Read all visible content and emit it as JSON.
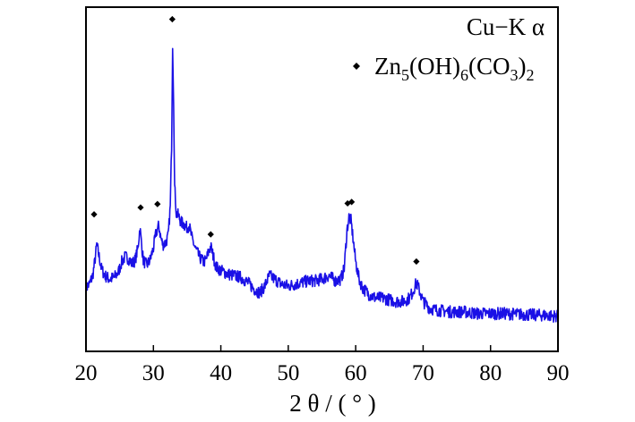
{
  "chart_data": {
    "type": "line",
    "xlabel": "2 θ / ( ° )",
    "ylabel": "",
    "xlim": [
      20,
      90
    ],
    "ylim": [
      0,
      100
    ],
    "x_ticks": [
      20,
      30,
      40,
      50,
      60,
      70,
      80,
      90
    ],
    "x_tick_labels": [
      "20",
      "30",
      "40",
      "50",
      "60",
      "70",
      "80",
      "90"
    ],
    "y_ticks_shown": false,
    "grid": false,
    "legend_position": "top-right",
    "colors": {
      "series": "#1a10e6",
      "marker": "#000000",
      "axes": "#000000"
    },
    "annotations": [
      {
        "text": "Cu−K α"
      },
      {
        "marker": "diamond",
        "formula": [
          {
            "t": "Zn"
          },
          {
            "t": "5",
            "sub": true
          },
          {
            "t": "(OH)"
          },
          {
            "t": "6",
            "sub": true
          },
          {
            "t": "(CO"
          },
          {
            "t": "3",
            "sub": true
          },
          {
            "t": ")"
          },
          {
            "t": "2",
            "sub": true
          }
        ]
      }
    ],
    "peak_markers": [
      {
        "x": 21.2,
        "y": 39.8
      },
      {
        "x": 28.1,
        "y": 41.8
      },
      {
        "x": 30.6,
        "y": 42.8
      },
      {
        "x": 32.8,
        "y": 96.5
      },
      {
        "x": 38.5,
        "y": 34.0
      },
      {
        "x": 58.8,
        "y": 43.0
      },
      {
        "x": 59.4,
        "y": 43.4
      },
      {
        "x": 69.0,
        "y": 26.1
      }
    ],
    "series": [
      {
        "name": "Zn5(OH)6(CO3)2",
        "color": "#1a10e6",
        "points": [
          [
            20.0,
            18.5
          ],
          [
            20.5,
            19.5
          ],
          [
            21.0,
            22.0
          ],
          [
            21.3,
            26.0
          ],
          [
            21.6,
            31.0
          ],
          [
            21.9,
            28.0
          ],
          [
            22.3,
            24.0
          ],
          [
            22.8,
            22.0
          ],
          [
            23.5,
            21.0
          ],
          [
            24.2,
            21.5
          ],
          [
            24.8,
            23.0
          ],
          [
            25.3,
            26.0
          ],
          [
            25.8,
            27.5
          ],
          [
            26.3,
            27.0
          ],
          [
            26.8,
            25.5
          ],
          [
            27.3,
            26.5
          ],
          [
            27.7,
            30.0
          ],
          [
            28.0,
            36.0
          ],
          [
            28.2,
            32.0
          ],
          [
            28.5,
            26.5
          ],
          [
            29.0,
            25.0
          ],
          [
            29.5,
            26.5
          ],
          [
            30.0,
            30.0
          ],
          [
            30.4,
            34.5
          ],
          [
            30.8,
            36.5
          ],
          [
            31.1,
            33.0
          ],
          [
            31.4,
            31.0
          ],
          [
            31.8,
            31.5
          ],
          [
            32.2,
            33.5
          ],
          [
            32.5,
            42.0
          ],
          [
            32.7,
            60.0
          ],
          [
            32.85,
            89.5
          ],
          [
            33.0,
            73.0
          ],
          [
            33.15,
            48.0
          ],
          [
            33.4,
            40.0
          ],
          [
            33.7,
            39.5
          ],
          [
            34.1,
            37.5
          ],
          [
            34.5,
            37.0
          ],
          [
            34.9,
            36.0
          ],
          [
            35.3,
            36.5
          ],
          [
            35.7,
            33.0
          ],
          [
            36.2,
            30.0
          ],
          [
            36.8,
            27.5
          ],
          [
            37.4,
            26.0
          ],
          [
            37.8,
            26.5
          ],
          [
            38.2,
            29.0
          ],
          [
            38.5,
            30.5
          ],
          [
            38.9,
            27.5
          ],
          [
            39.3,
            24.5
          ],
          [
            40.0,
            23.5
          ],
          [
            41.0,
            22.5
          ],
          [
            42.0,
            22.0
          ],
          [
            43.0,
            21.5
          ],
          [
            44.0,
            20.0
          ],
          [
            45.0,
            18.0
          ],
          [
            45.8,
            17.0
          ],
          [
            46.5,
            19.0
          ],
          [
            47.2,
            22.0
          ],
          [
            48.0,
            21.0
          ],
          [
            49.0,
            19.5
          ],
          [
            50.0,
            19.0
          ],
          [
            51.0,
            19.5
          ],
          [
            52.0,
            20.0
          ],
          [
            53.0,
            20.5
          ],
          [
            54.0,
            20.5
          ],
          [
            55.0,
            21.0
          ],
          [
            56.0,
            22.0
          ],
          [
            57.0,
            20.5
          ],
          [
            57.8,
            21.0
          ],
          [
            58.3,
            24.0
          ],
          [
            58.7,
            35.0
          ],
          [
            59.0,
            39.0
          ],
          [
            59.3,
            38.0
          ],
          [
            59.6,
            33.0
          ],
          [
            60.0,
            26.0
          ],
          [
            60.5,
            21.0
          ],
          [
            61.0,
            18.5
          ],
          [
            62.0,
            16.5
          ],
          [
            63.0,
            15.5
          ],
          [
            64.0,
            15.5
          ],
          [
            65.0,
            15.0
          ],
          [
            66.0,
            14.5
          ],
          [
            67.0,
            14.5
          ],
          [
            68.0,
            15.5
          ],
          [
            68.5,
            17.5
          ],
          [
            69.0,
            20.0
          ],
          [
            69.4,
            18.0
          ],
          [
            70.0,
            14.5
          ],
          [
            71.0,
            12.5
          ],
          [
            72.0,
            12.0
          ],
          [
            74.0,
            11.5
          ],
          [
            76.0,
            11.5
          ],
          [
            78.0,
            11.0
          ],
          [
            80.0,
            11.0
          ],
          [
            82.0,
            11.0
          ],
          [
            84.0,
            10.8
          ],
          [
            86.0,
            10.6
          ],
          [
            88.0,
            10.5
          ],
          [
            90.0,
            10.2
          ]
        ]
      }
    ]
  }
}
